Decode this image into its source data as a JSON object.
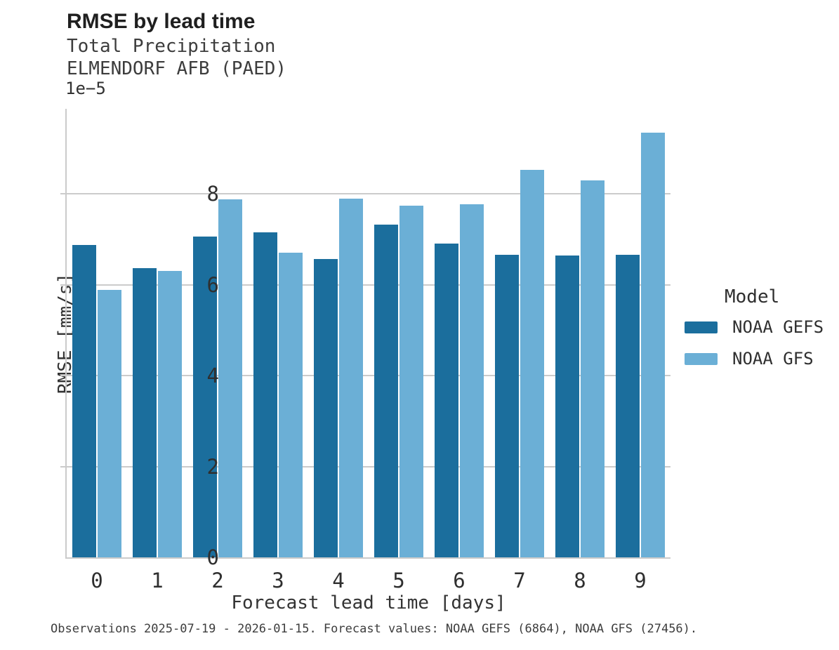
{
  "header": {
    "title": "RMSE by lead time",
    "subtitle_line1": "Total Precipitation",
    "subtitle_line2": "ELMENDORF AFB (PAED)"
  },
  "chart_data": {
    "type": "bar",
    "title": "RMSE by lead time",
    "subtitle": [
      "Total Precipitation",
      "ELMENDORF AFB (PAED)"
    ],
    "categories": [
      "0",
      "1",
      "2",
      "3",
      "4",
      "5",
      "6",
      "7",
      "8",
      "9"
    ],
    "series": [
      {
        "name": "NOAA GEFS",
        "color": "#1B6E9D",
        "values": [
          6.87,
          6.36,
          7.06,
          7.15,
          6.56,
          7.32,
          6.9,
          6.65,
          6.64,
          6.65
        ]
      },
      {
        "name": "NOAA GFS",
        "color": "#6BAFD6",
        "values": [
          5.88,
          6.3,
          7.87,
          6.71,
          7.9,
          7.74,
          7.77,
          8.52,
          8.29,
          9.35
        ]
      }
    ],
    "value_scale": "1e−5",
    "xlabel": "Forecast lead time [days]",
    "ylabel": "RMSE [mm/s]",
    "yticks": [
      0,
      2,
      4,
      6,
      8
    ],
    "ylim": [
      0,
      9.87
    ],
    "grid": "horizontal-only",
    "legend_title": "Model",
    "legend_position": "center-right"
  },
  "legend": {
    "title": "Model",
    "items": [
      {
        "label": "NOAA GEFS",
        "color": "#1B6E9D"
      },
      {
        "label": "NOAA GFS",
        "color": "#6BAFD6"
      }
    ]
  },
  "footer": {
    "caption": "Observations 2025-07-19 - 2026-01-15. Forecast values: NOAA GEFS (6864), NOAA GFS (27456)."
  },
  "colors": {
    "series_dark": "#1B6E9D",
    "series_light": "#6BAFD6",
    "grid": "#cbcbcb",
    "text": "#2f2f2f",
    "title_text": "#1f1f1f",
    "background": "#ffffff"
  }
}
